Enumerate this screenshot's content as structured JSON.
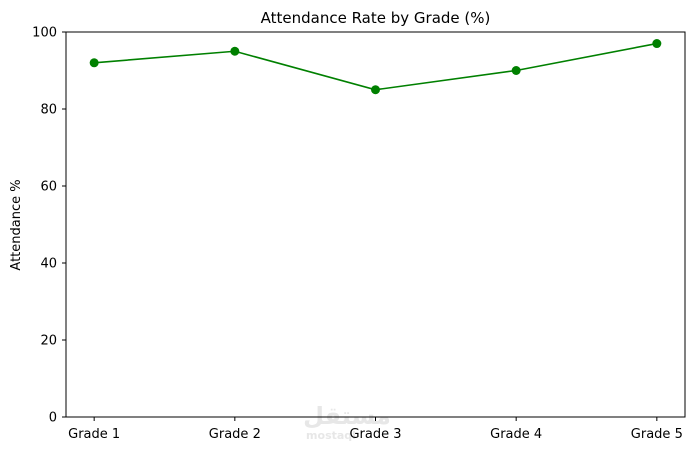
{
  "chart_data": {
    "type": "line",
    "title": "Attendance Rate by Grade (%)",
    "xlabel": "",
    "ylabel": "Attendance %",
    "categories": [
      "Grade 1",
      "Grade 2",
      "Grade 3",
      "Grade 4",
      "Grade 5"
    ],
    "series": [
      {
        "values": [
          92,
          95,
          85,
          90,
          97
        ],
        "color": "#008000",
        "marker": "circle"
      }
    ],
    "ylim": [
      0,
      100
    ],
    "yticks": [
      0,
      20,
      40,
      60,
      80,
      100
    ],
    "grid": false,
    "legend": "none"
  },
  "watermark": {
    "arabic": "مستقل",
    "latin": "mostaql"
  }
}
